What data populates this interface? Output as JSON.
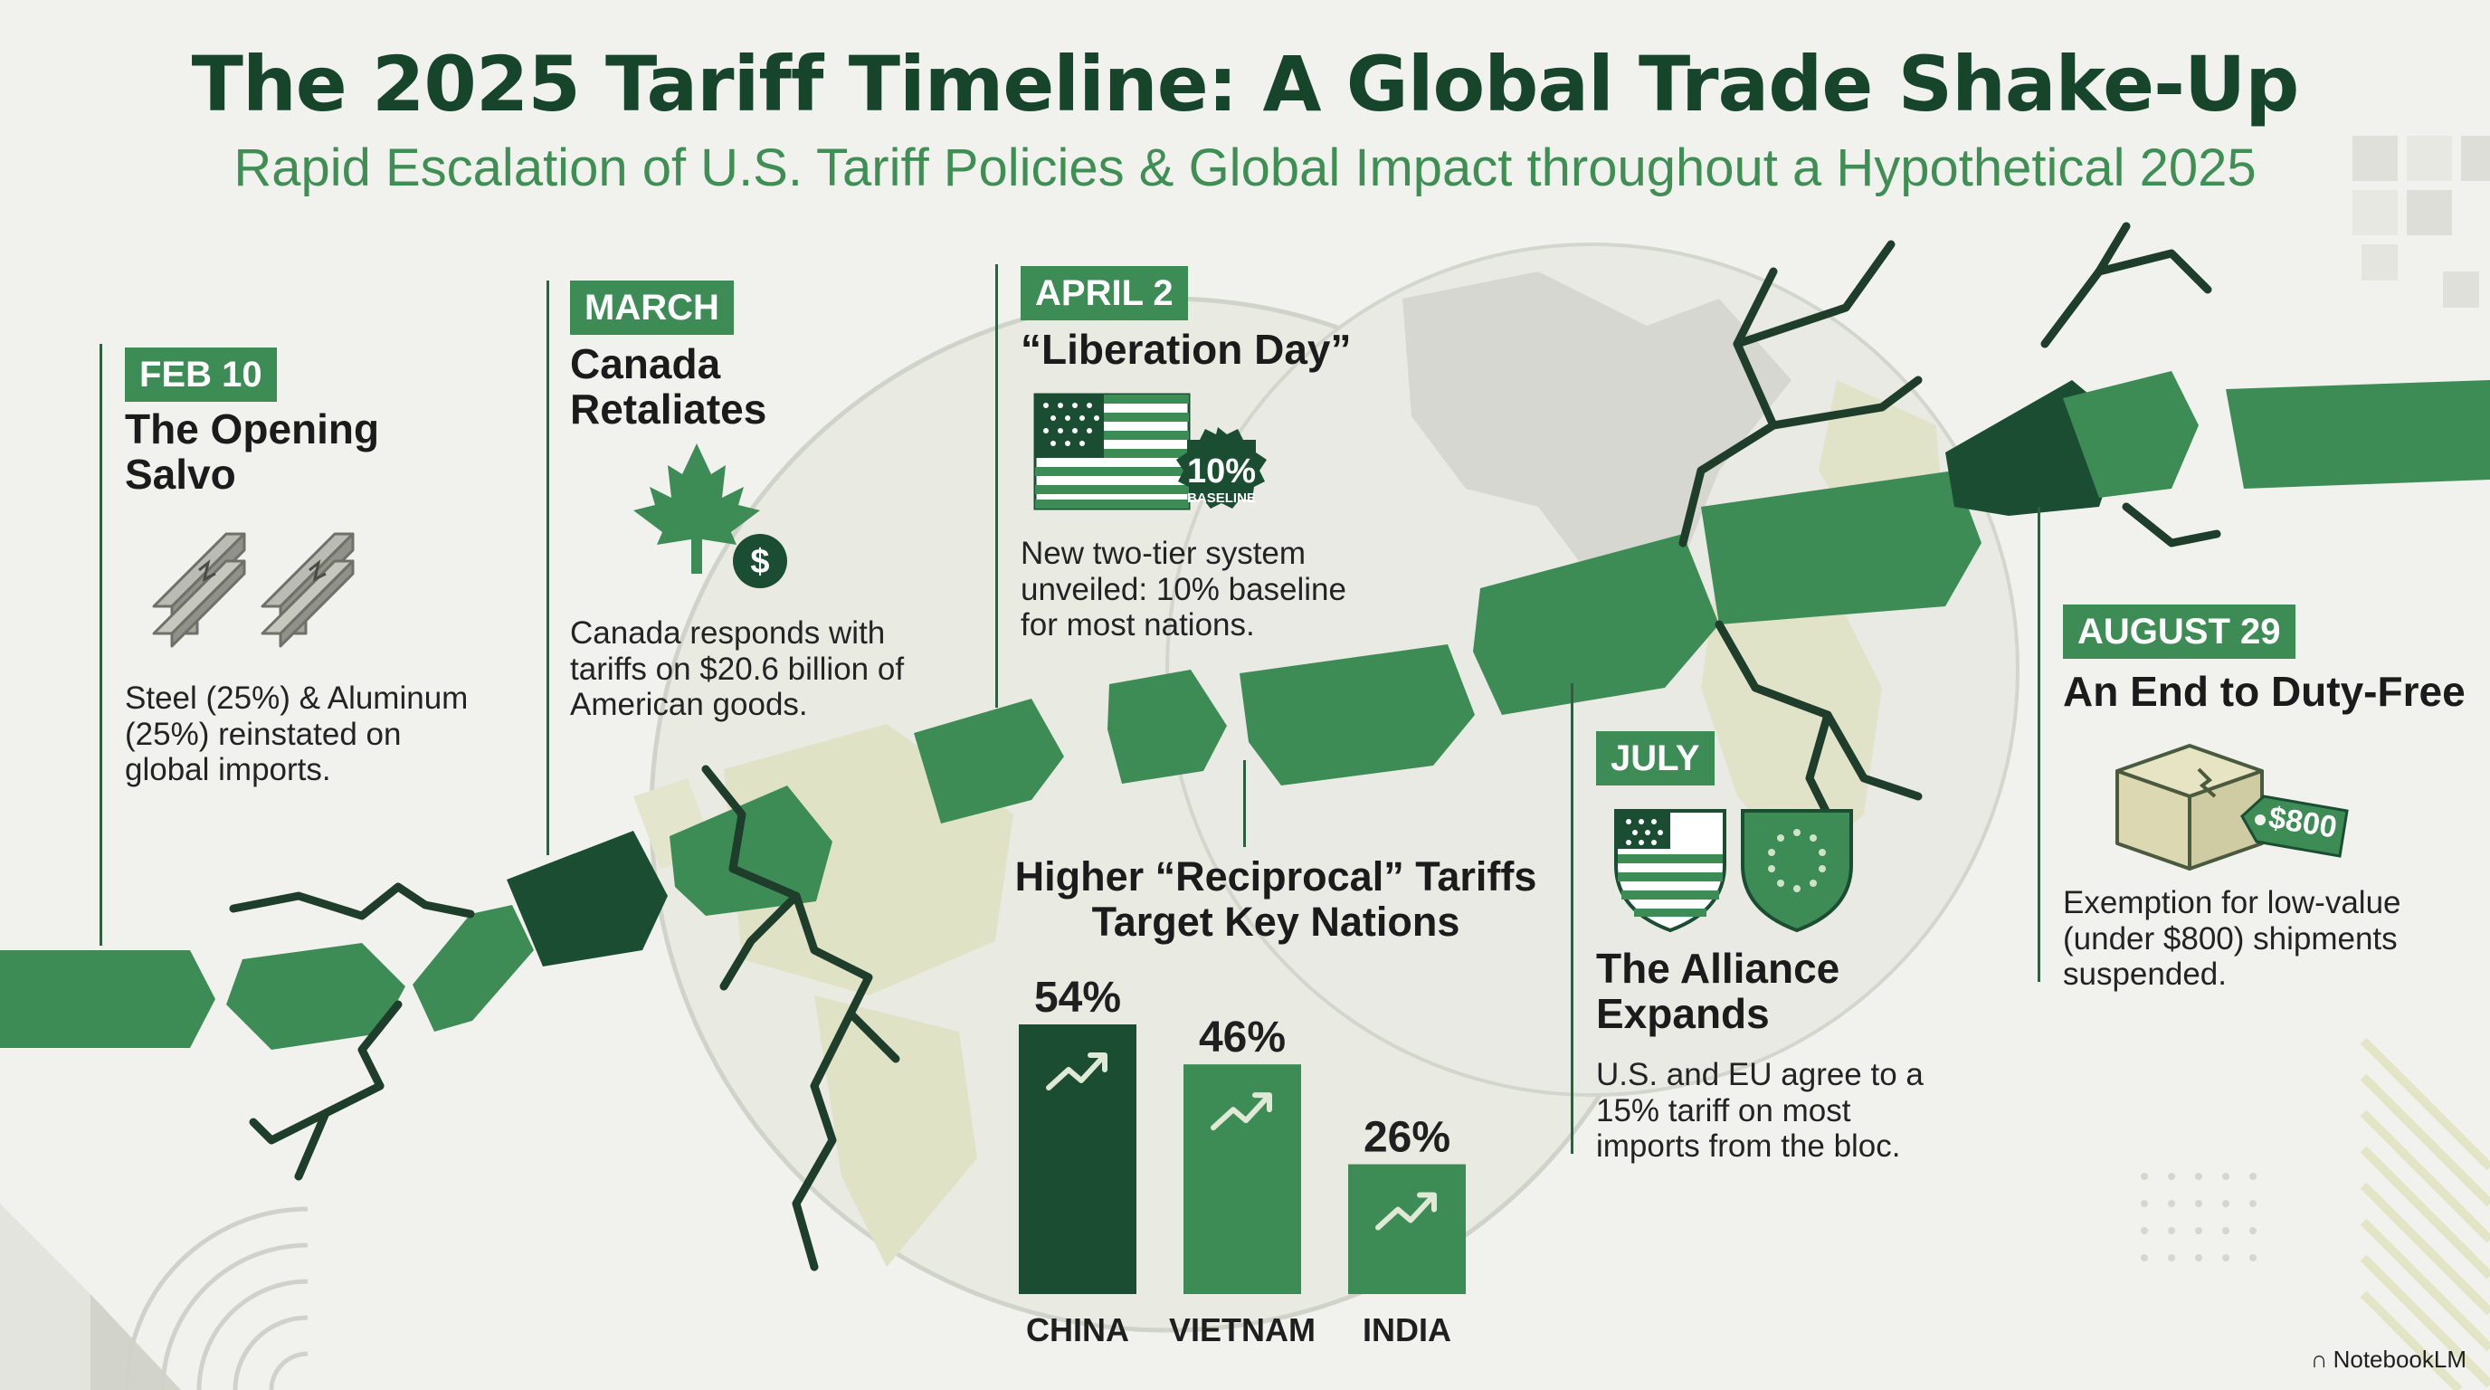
{
  "header": {
    "title": "The 2025 Tariff Timeline: A Global Trade Shake-Up",
    "subtitle": "Rapid Escalation of U.S. Tariff Policies & Global Impact throughout a Hypothetical 2025"
  },
  "events": {
    "feb": {
      "date": "FEB 10",
      "headline": "The Opening Salvo",
      "body": "Steel (25%) & Aluminum (25%) reinstated on global imports.",
      "icon": "steel-beams-icon"
    },
    "march": {
      "date": "MARCH",
      "headline": "Canada Retaliates",
      "body": "Canada responds with tariffs on $20.6 billion of American goods.",
      "icon": "maple-leaf-dollar-icon"
    },
    "april": {
      "date": "APRIL 2",
      "headline": "“Liberation Day”",
      "seal_value": "10%",
      "seal_label": "BASELINE",
      "body": "New two-tier system unveiled: 10% baseline for most nations.",
      "icon": "us-flag-icon"
    },
    "july": {
      "date": "JULY",
      "headline": "The Alliance Expands",
      "body": "U.S. and EU agree to a 15% tariff on most imports from the bloc.",
      "icon": "us-eu-shields-icon"
    },
    "august": {
      "date": "AUGUST 29",
      "headline": "An End to Duty-Free",
      "tag_label": "$800",
      "body": "Exemption for low-value (under $800) shipments suspended.",
      "icon": "package-price-tag-icon"
    }
  },
  "reciprocal": {
    "title": "Higher “Reciprocal” Tariffs Target Key Nations"
  },
  "chart_data": {
    "type": "bar",
    "title": "Higher “Reciprocal” Tariffs Target Key Nations",
    "categories": [
      "CHINA",
      "VIETNAM",
      "INDIA"
    ],
    "values": [
      54,
      46,
      26
    ],
    "value_labels": [
      "54%",
      "46%",
      "26%"
    ],
    "colors": [
      "#1b4d32",
      "#3e8c55",
      "#3e8c55"
    ],
    "ylim": [
      0,
      54
    ],
    "grid": false
  },
  "branding": {
    "name": "NotebookLM"
  },
  "colors": {
    "title": "#17452c",
    "accent": "#3e8c55",
    "dark": "#1b4d32",
    "background": "#f1f2ee"
  }
}
